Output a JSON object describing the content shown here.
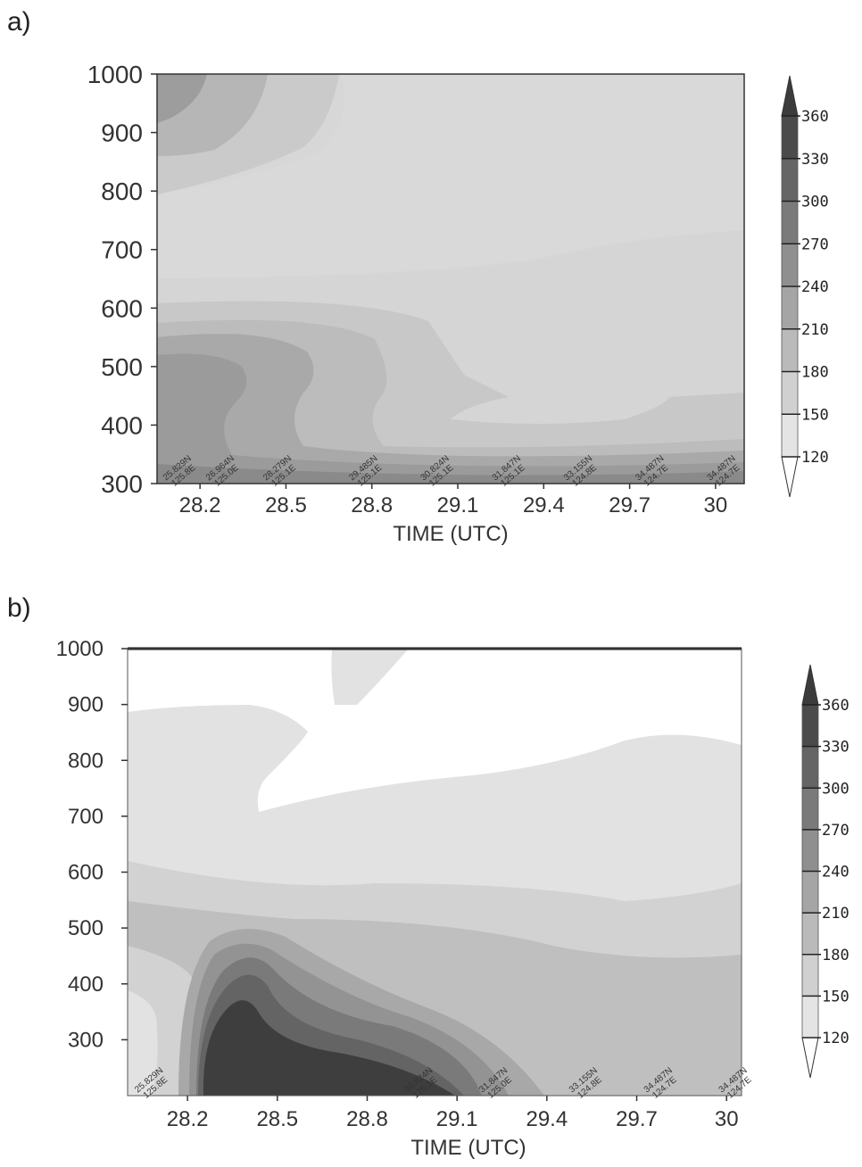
{
  "figure": {
    "panel_a_label": "a)",
    "panel_b_label": "b)"
  },
  "colorbar": {
    "levels": [
      "120",
      "150",
      "180",
      "210",
      "240",
      "270",
      "300",
      "330",
      "360"
    ],
    "bands": [
      "#e4e4e4",
      "#d0d0d0",
      "#bababa",
      "#a5a5a5",
      "#8f8f8f",
      "#7a7a7a",
      "#656565",
      "#4b4b4b"
    ],
    "under_color": "#ffffff",
    "over_color": "#3c3c3c"
  },
  "chart_data": [
    {
      "type": "heatmap",
      "panel": "a)",
      "title": "",
      "xlabel": "TIME (UTC)",
      "ylabel": "",
      "x_ticks": [
        "28.2",
        "28.5",
        "28.8",
        "29.1",
        "29.4",
        "29.7",
        "30"
      ],
      "y_ticks": [
        "300",
        "400",
        "500",
        "600",
        "700",
        "800",
        "900",
        "1000"
      ],
      "xlim": [
        28.05,
        30.1
      ],
      "ylim": [
        1000,
        300
      ],
      "contour_levels": [
        120,
        150,
        180,
        210,
        240,
        270,
        300,
        330,
        360
      ],
      "track_labels": [
        {
          "x": 28.15,
          "lat": "25.829N",
          "lon": "125.8E"
        },
        {
          "x": 28.3,
          "lat": "26.964N",
          "lon": "125.0E"
        },
        {
          "x": 28.5,
          "lat": "28.279N",
          "lon": "125.1E"
        },
        {
          "x": 28.8,
          "lat": "29.485N",
          "lon": "125.1E"
        },
        {
          "x": 29.05,
          "lat": "30.824N",
          "lon": "125.1E"
        },
        {
          "x": 29.3,
          "lat": "31.847N",
          "lon": "125.1E"
        },
        {
          "x": 29.55,
          "lat": "33.155N",
          "lon": "124.8E"
        },
        {
          "x": 29.8,
          "lat": "34.487N",
          "lon": "124.7E"
        },
        {
          "x": 30.05,
          "lat": "34.487N",
          "lon": "124.7E"
        }
      ]
    },
    {
      "type": "heatmap",
      "panel": "b)",
      "title": "",
      "xlabel": "TIME (UTC)",
      "ylabel": "",
      "x_ticks": [
        "28.2",
        "28.5",
        "28.8",
        "29.1",
        "29.4",
        "29.7",
        "30"
      ],
      "y_ticks": [
        "300",
        "400",
        "500",
        "600",
        "700",
        "800",
        "900",
        "1000"
      ],
      "xlim": [
        28.0,
        30.05
      ],
      "ylim": [
        1000,
        200
      ],
      "contour_levels": [
        120,
        150,
        180,
        210,
        240,
        270,
        300,
        330,
        360
      ],
      "track_labels": [
        {
          "x": 28.1,
          "lat": "25.829N",
          "lon": "125.8E"
        },
        {
          "x": 29.0,
          "lat": "30.824N",
          "lon": "125.1E"
        },
        {
          "x": 29.25,
          "lat": "31.847N",
          "lon": "125.0E"
        },
        {
          "x": 29.55,
          "lat": "33.155N",
          "lon": "124.8E"
        },
        {
          "x": 29.8,
          "lat": "34.487N",
          "lon": "124.7E"
        },
        {
          "x": 30.05,
          "lat": "34.487N",
          "lon": "124.7E"
        }
      ]
    }
  ]
}
